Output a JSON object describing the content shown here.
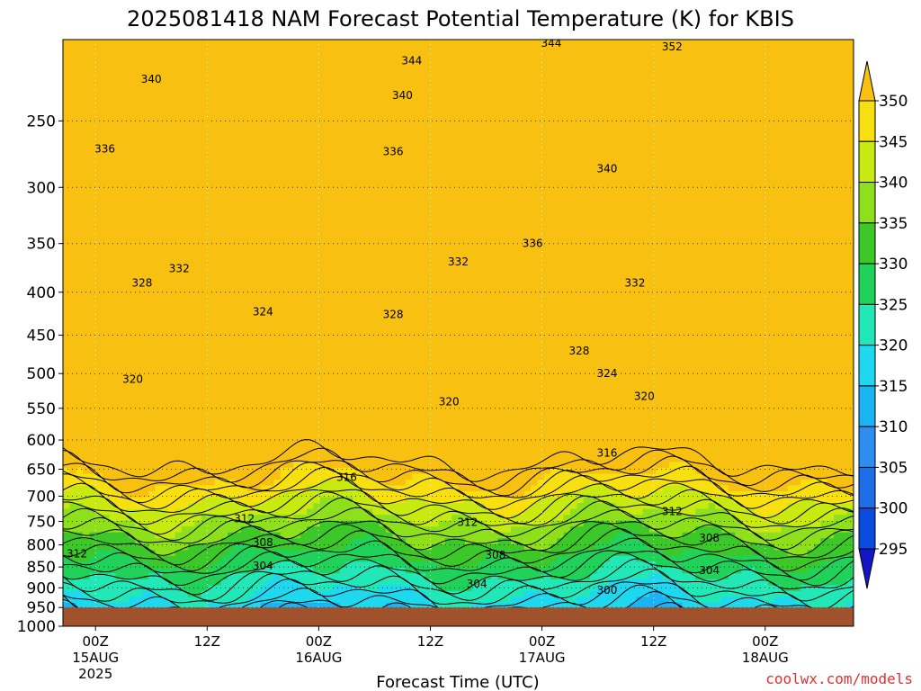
{
  "chart_data": {
    "type": "heatmap",
    "title": "2025081418 NAM Forecast Potential Temperature (K) for KBIS",
    "xlabel": "Forecast Time (UTC)",
    "ylabel": "",
    "credit": "coolwx.com/models",
    "y_scale": "pressure (log)",
    "ylim": [
      1000,
      200
    ],
    "y_ticks": [
      250,
      300,
      350,
      400,
      450,
      500,
      550,
      600,
      650,
      700,
      750,
      800,
      850,
      900,
      950,
      1000
    ],
    "xlim_hours": [
      -3.5,
      81.5
    ],
    "x_ticks": [
      {
        "hour": 0,
        "lines": [
          "00Z",
          "15AUG",
          "2025"
        ]
      },
      {
        "hour": 12,
        "lines": [
          "12Z"
        ]
      },
      {
        "hour": 24,
        "lines": [
          "00Z",
          "16AUG"
        ]
      },
      {
        "hour": 36,
        "lines": [
          "12Z"
        ]
      },
      {
        "hour": 48,
        "lines": [
          "00Z",
          "17AUG"
        ]
      },
      {
        "hour": 60,
        "lines": [
          "12Z"
        ]
      },
      {
        "hour": 72,
        "lines": [
          "00Z",
          "18AUG"
        ]
      }
    ],
    "grid": true,
    "surface_pressure": 950,
    "surface_color": "#a0522d",
    "colorbar": {
      "placement": "right",
      "levels": [
        295,
        300,
        305,
        310,
        315,
        320,
        325,
        330,
        335,
        340,
        345,
        350
      ],
      "colors": [
        "#1515c8",
        "#0a4ce0",
        "#1e6ee8",
        "#2c8ef0",
        "#1ab4f4",
        "#1ed8f0",
        "#22e8b8",
        "#20d25a",
        "#3cc828",
        "#8fe01c",
        "#c8ea10",
        "#f8e010",
        "#f8c010"
      ]
    },
    "contour_interval": 2,
    "contour_labels": [
      {
        "value": 352,
        "hour": 62,
        "p": 204
      },
      {
        "value": 344,
        "hour": 34,
        "p": 212
      },
      {
        "value": 344,
        "hour": 49,
        "p": 202
      },
      {
        "value": 340,
        "hour": 6,
        "p": 223
      },
      {
        "value": 340,
        "hour": 33,
        "p": 233
      },
      {
        "value": 340,
        "hour": 55,
        "p": 285
      },
      {
        "value": 336,
        "hour": 1,
        "p": 270
      },
      {
        "value": 336,
        "hour": 32,
        "p": 272
      },
      {
        "value": 336,
        "hour": 47,
        "p": 350
      },
      {
        "value": 332,
        "hour": 9,
        "p": 375
      },
      {
        "value": 332,
        "hour": 39,
        "p": 368
      },
      {
        "value": 332,
        "hour": 58,
        "p": 390
      },
      {
        "value": 328,
        "hour": 5,
        "p": 390
      },
      {
        "value": 328,
        "hour": 32,
        "p": 425
      },
      {
        "value": 328,
        "hour": 52,
        "p": 470
      },
      {
        "value": 324,
        "hour": 18,
        "p": 422
      },
      {
        "value": 324,
        "hour": 55,
        "p": 500
      },
      {
        "value": 320,
        "hour": 4,
        "p": 508
      },
      {
        "value": 320,
        "hour": 38,
        "p": 540
      },
      {
        "value": 320,
        "hour": 59,
        "p": 532
      },
      {
        "value": 316,
        "hour": 27,
        "p": 665
      },
      {
        "value": 316,
        "hour": 55,
        "p": 622
      },
      {
        "value": 312,
        "hour": 16,
        "p": 745
      },
      {
        "value": 312,
        "hour": 40,
        "p": 752
      },
      {
        "value": 312,
        "hour": 62,
        "p": 730
      },
      {
        "value": 312,
        "hour": -2,
        "p": 820
      },
      {
        "value": 308,
        "hour": 18,
        "p": 795
      },
      {
        "value": 308,
        "hour": 43,
        "p": 823
      },
      {
        "value": 308,
        "hour": 66,
        "p": 785
      },
      {
        "value": 304,
        "hour": 18,
        "p": 848
      },
      {
        "value": 304,
        "hour": 41,
        "p": 890
      },
      {
        "value": 304,
        "hour": 66,
        "p": 858
      },
      {
        "value": 300,
        "hour": 55,
        "p": 906
      }
    ]
  }
}
